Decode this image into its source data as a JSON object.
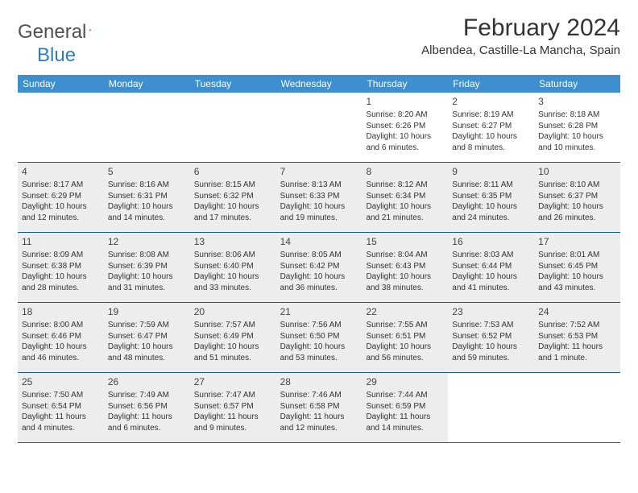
{
  "header": {
    "logo_general": "General",
    "logo_blue": "Blue",
    "logo_sail_color": "#2e7dc2",
    "month_title": "February 2024",
    "location": "Albendea, Castille-La Mancha, Spain"
  },
  "colors": {
    "header_bar": "#3d8fcf",
    "week_divider": "#1a5a8e",
    "shaded_row": "#ededed",
    "text": "#333333"
  },
  "dow": [
    "Sunday",
    "Monday",
    "Tuesday",
    "Wednesday",
    "Thursday",
    "Friday",
    "Saturday"
  ],
  "weeks": [
    {
      "shaded": false,
      "days": [
        {
          "blank": true
        },
        {
          "blank": true
        },
        {
          "blank": true
        },
        {
          "blank": true
        },
        {
          "num": "1",
          "sunrise": "Sunrise: 8:20 AM",
          "sunset": "Sunset: 6:26 PM",
          "daylight": "Daylight: 10 hours and 6 minutes."
        },
        {
          "num": "2",
          "sunrise": "Sunrise: 8:19 AM",
          "sunset": "Sunset: 6:27 PM",
          "daylight": "Daylight: 10 hours and 8 minutes."
        },
        {
          "num": "3",
          "sunrise": "Sunrise: 8:18 AM",
          "sunset": "Sunset: 6:28 PM",
          "daylight": "Daylight: 10 hours and 10 minutes."
        }
      ]
    },
    {
      "shaded": true,
      "days": [
        {
          "num": "4",
          "sunrise": "Sunrise: 8:17 AM",
          "sunset": "Sunset: 6:29 PM",
          "daylight": "Daylight: 10 hours and 12 minutes."
        },
        {
          "num": "5",
          "sunrise": "Sunrise: 8:16 AM",
          "sunset": "Sunset: 6:31 PM",
          "daylight": "Daylight: 10 hours and 14 minutes."
        },
        {
          "num": "6",
          "sunrise": "Sunrise: 8:15 AM",
          "sunset": "Sunset: 6:32 PM",
          "daylight": "Daylight: 10 hours and 17 minutes."
        },
        {
          "num": "7",
          "sunrise": "Sunrise: 8:13 AM",
          "sunset": "Sunset: 6:33 PM",
          "daylight": "Daylight: 10 hours and 19 minutes."
        },
        {
          "num": "8",
          "sunrise": "Sunrise: 8:12 AM",
          "sunset": "Sunset: 6:34 PM",
          "daylight": "Daylight: 10 hours and 21 minutes."
        },
        {
          "num": "9",
          "sunrise": "Sunrise: 8:11 AM",
          "sunset": "Sunset: 6:35 PM",
          "daylight": "Daylight: 10 hours and 24 minutes."
        },
        {
          "num": "10",
          "sunrise": "Sunrise: 8:10 AM",
          "sunset": "Sunset: 6:37 PM",
          "daylight": "Daylight: 10 hours and 26 minutes."
        }
      ]
    },
    {
      "shaded": true,
      "days": [
        {
          "num": "11",
          "sunrise": "Sunrise: 8:09 AM",
          "sunset": "Sunset: 6:38 PM",
          "daylight": "Daylight: 10 hours and 28 minutes."
        },
        {
          "num": "12",
          "sunrise": "Sunrise: 8:08 AM",
          "sunset": "Sunset: 6:39 PM",
          "daylight": "Daylight: 10 hours and 31 minutes."
        },
        {
          "num": "13",
          "sunrise": "Sunrise: 8:06 AM",
          "sunset": "Sunset: 6:40 PM",
          "daylight": "Daylight: 10 hours and 33 minutes."
        },
        {
          "num": "14",
          "sunrise": "Sunrise: 8:05 AM",
          "sunset": "Sunset: 6:42 PM",
          "daylight": "Daylight: 10 hours and 36 minutes."
        },
        {
          "num": "15",
          "sunrise": "Sunrise: 8:04 AM",
          "sunset": "Sunset: 6:43 PM",
          "daylight": "Daylight: 10 hours and 38 minutes."
        },
        {
          "num": "16",
          "sunrise": "Sunrise: 8:03 AM",
          "sunset": "Sunset: 6:44 PM",
          "daylight": "Daylight: 10 hours and 41 minutes."
        },
        {
          "num": "17",
          "sunrise": "Sunrise: 8:01 AM",
          "sunset": "Sunset: 6:45 PM",
          "daylight": "Daylight: 10 hours and 43 minutes."
        }
      ]
    },
    {
      "shaded": true,
      "days": [
        {
          "num": "18",
          "sunrise": "Sunrise: 8:00 AM",
          "sunset": "Sunset: 6:46 PM",
          "daylight": "Daylight: 10 hours and 46 minutes."
        },
        {
          "num": "19",
          "sunrise": "Sunrise: 7:59 AM",
          "sunset": "Sunset: 6:47 PM",
          "daylight": "Daylight: 10 hours and 48 minutes."
        },
        {
          "num": "20",
          "sunrise": "Sunrise: 7:57 AM",
          "sunset": "Sunset: 6:49 PM",
          "daylight": "Daylight: 10 hours and 51 minutes."
        },
        {
          "num": "21",
          "sunrise": "Sunrise: 7:56 AM",
          "sunset": "Sunset: 6:50 PM",
          "daylight": "Daylight: 10 hours and 53 minutes."
        },
        {
          "num": "22",
          "sunrise": "Sunrise: 7:55 AM",
          "sunset": "Sunset: 6:51 PM",
          "daylight": "Daylight: 10 hours and 56 minutes."
        },
        {
          "num": "23",
          "sunrise": "Sunrise: 7:53 AM",
          "sunset": "Sunset: 6:52 PM",
          "daylight": "Daylight: 10 hours and 59 minutes."
        },
        {
          "num": "24",
          "sunrise": "Sunrise: 7:52 AM",
          "sunset": "Sunset: 6:53 PM",
          "daylight": "Daylight: 11 hours and 1 minute."
        }
      ]
    },
    {
      "shaded": true,
      "days": [
        {
          "num": "25",
          "sunrise": "Sunrise: 7:50 AM",
          "sunset": "Sunset: 6:54 PM",
          "daylight": "Daylight: 11 hours and 4 minutes."
        },
        {
          "num": "26",
          "sunrise": "Sunrise: 7:49 AM",
          "sunset": "Sunset: 6:56 PM",
          "daylight": "Daylight: 11 hours and 6 minutes."
        },
        {
          "num": "27",
          "sunrise": "Sunrise: 7:47 AM",
          "sunset": "Sunset: 6:57 PM",
          "daylight": "Daylight: 11 hours and 9 minutes."
        },
        {
          "num": "28",
          "sunrise": "Sunrise: 7:46 AM",
          "sunset": "Sunset: 6:58 PM",
          "daylight": "Daylight: 11 hours and 12 minutes."
        },
        {
          "num": "29",
          "sunrise": "Sunrise: 7:44 AM",
          "sunset": "Sunset: 6:59 PM",
          "daylight": "Daylight: 11 hours and 14 minutes."
        },
        {
          "blank": true
        },
        {
          "blank": true
        }
      ]
    }
  ]
}
